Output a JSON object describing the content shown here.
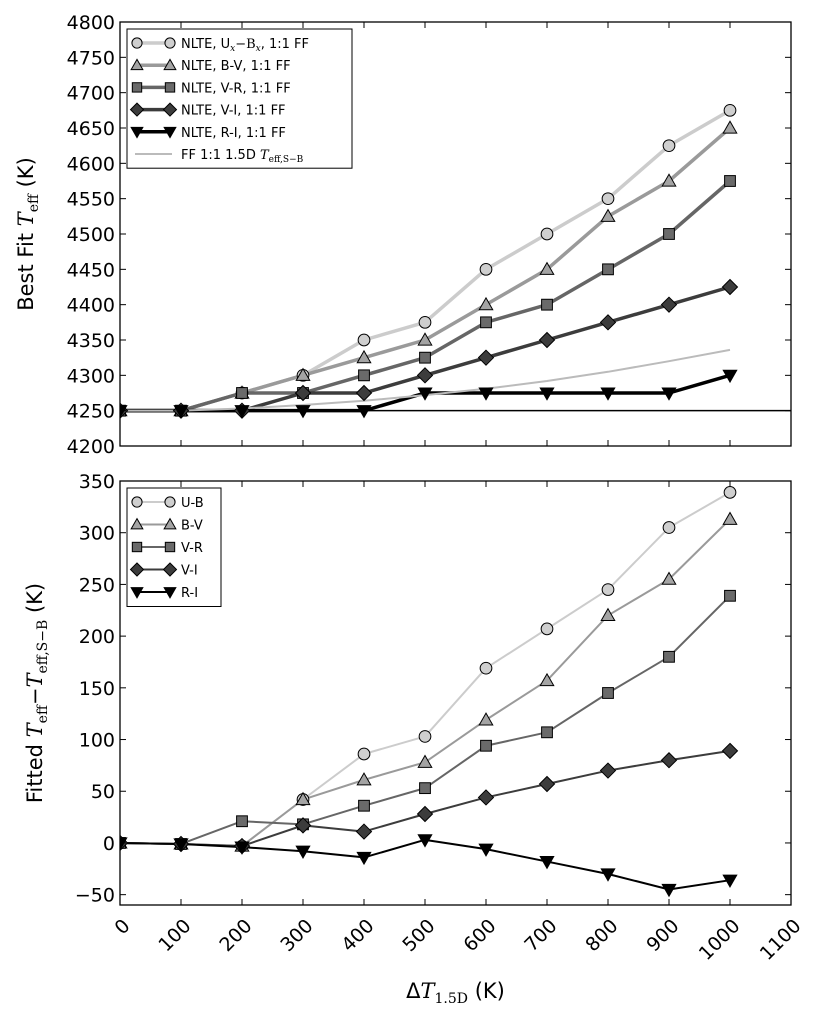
{
  "chart_data": [
    {
      "type": "line",
      "ylabel": "Best Fit T_eff (K)",
      "ylabel_main": "Best Fit ",
      "ylabel_var": "T",
      "ylabel_sub": "eff",
      "ylabel_unit": " (K)",
      "xlim": [
        0,
        1100
      ],
      "ylim": [
        4200,
        4800
      ],
      "xticks": [
        0,
        100,
        200,
        300,
        400,
        500,
        600,
        700,
        800,
        900,
        1000,
        1100
      ],
      "yticks": [
        4200,
        4250,
        4300,
        4350,
        4400,
        4450,
        4500,
        4550,
        4600,
        4650,
        4700,
        4750,
        4800
      ],
      "x": [
        0,
        100,
        200,
        300,
        400,
        500,
        600,
        700,
        800,
        900,
        1000
      ],
      "hline": 4250,
      "series": [
        {
          "name": "NLTE, U_x−B_x, 1:1 FF",
          "marker": "circle",
          "line": "#cccccc",
          "fill": "#cfcfcf",
          "values": [
            4250,
            4250,
            4275,
            4300,
            4350,
            4375,
            4450,
            4500,
            4550,
            4625,
            4675
          ]
        },
        {
          "name": "NLTE, B-V, 1:1 FF",
          "marker": "triangle-up",
          "line": "#9a9a9a",
          "fill": "#a4a4a4",
          "values": [
            4250,
            4250,
            4275,
            4300,
            4325,
            4350,
            4400,
            4450,
            4525,
            4575,
            4650
          ]
        },
        {
          "name": "NLTE, V-R, 1:1 FF",
          "marker": "square",
          "line": "#666666",
          "fill": "#6a6a6a",
          "values": [
            4250,
            4250,
            4275,
            4275,
            4300,
            4325,
            4375,
            4400,
            4450,
            4500,
            4575
          ]
        },
        {
          "name": "NLTE, V-I, 1:1 FF",
          "marker": "diamond",
          "line": "#3c3c3c",
          "fill": "#3c3c3c",
          "values": [
            4250,
            4250,
            4250,
            4275,
            4275,
            4300,
            4325,
            4350,
            4375,
            4400,
            4425
          ]
        },
        {
          "name": "NLTE, R-I, 1:1 FF",
          "marker": "triangle-down",
          "line": "#000000",
          "fill": "#000000",
          "values": [
            4250,
            4250,
            4250,
            4250,
            4250,
            4275,
            4275,
            4275,
            4275,
            4275,
            4300
          ]
        },
        {
          "name": "FF 1:1 1.5D T_eff,S−B",
          "marker": "none",
          "line": "#bbbbbb",
          "fill": "none",
          "values": [
            4250,
            4250,
            4253,
            4258,
            4264,
            4272,
            4281,
            4292,
            4305,
            4320,
            4336
          ]
        }
      ],
      "legend": {
        "placement": "upper-left",
        "labels": [
          {
            "prefix": "NLTE, U",
            "s1": "x",
            "mid": "−B",
            "s2": "x",
            "suffix": ", 1:1 FF"
          },
          {
            "prefix": "NLTE, B-V, 1:1 FF"
          },
          {
            "prefix": "NLTE, V-R, 1:1 FF"
          },
          {
            "prefix": "NLTE, V-I, 1:1 FF"
          },
          {
            "prefix": "NLTE, R-I, 1:1 FF"
          },
          {
            "prefix": "FF 1:1 1.5D ",
            "var": "T",
            "sub": "eff,S−B"
          }
        ]
      }
    },
    {
      "type": "line",
      "ylabel": "Fitted T_eff−T_eff,S−B (K)",
      "ylabel_main": "Fitted ",
      "ylabel_var": "T",
      "ylabel_sub": "eff",
      "ylabel_minus": "−",
      "ylabel_var2": "T",
      "ylabel_sub2": "eff,S−B",
      "ylabel_unit": " (K)",
      "xlabel": "ΔT_1.5D (K)",
      "xlabel_delta": "Δ",
      "xlabel_var": "T",
      "xlabel_sub": "1.5D",
      "xlabel_unit": " (K)",
      "xlim": [
        0,
        1100
      ],
      "ylim": [
        -60,
        350
      ],
      "xticks": [
        0,
        100,
        200,
        300,
        400,
        500,
        600,
        700,
        800,
        900,
        1000,
        1100
      ],
      "yticks": [
        -50,
        0,
        50,
        100,
        150,
        200,
        250,
        300,
        350
      ],
      "x": [
        0,
        100,
        200,
        300,
        400,
        500,
        600,
        700,
        800,
        900,
        1000
      ],
      "series": [
        {
          "name": "U-B",
          "marker": "circle",
          "line": "#cccccc",
          "fill": "#cfcfcf",
          "values": [
            0,
            -1,
            -3,
            42,
            86,
            103,
            169,
            207,
            245,
            305,
            339
          ]
        },
        {
          "name": "B-V",
          "marker": "triangle-up",
          "line": "#9a9a9a",
          "fill": "#a4a4a4",
          "values": [
            0,
            -1,
            -3,
            42,
            61,
            78,
            119,
            157,
            220,
            255,
            313
          ]
        },
        {
          "name": "V-R",
          "marker": "square",
          "line": "#666666",
          "fill": "#6a6a6a",
          "values": [
            0,
            -1,
            21,
            18,
            36,
            53,
            94,
            107,
            145,
            180,
            239
          ]
        },
        {
          "name": "V-I",
          "marker": "diamond",
          "line": "#3c3c3c",
          "fill": "#3c3c3c",
          "values": [
            0,
            -1,
            -3,
            17,
            11,
            28,
            44,
            57,
            70,
            80,
            89
          ]
        },
        {
          "name": "R-I",
          "marker": "triangle-down",
          "line": "#000000",
          "fill": "#000000",
          "values": [
            0,
            -1,
            -4,
            -8,
            -14,
            3,
            -6,
            -18,
            -30,
            -45,
            -36
          ]
        }
      ],
      "legend": {
        "placement": "upper-left",
        "labels": [
          {
            "prefix": "U-B"
          },
          {
            "prefix": "B-V"
          },
          {
            "prefix": "V-R"
          },
          {
            "prefix": "V-I"
          },
          {
            "prefix": "R-I"
          }
        ]
      }
    }
  ]
}
